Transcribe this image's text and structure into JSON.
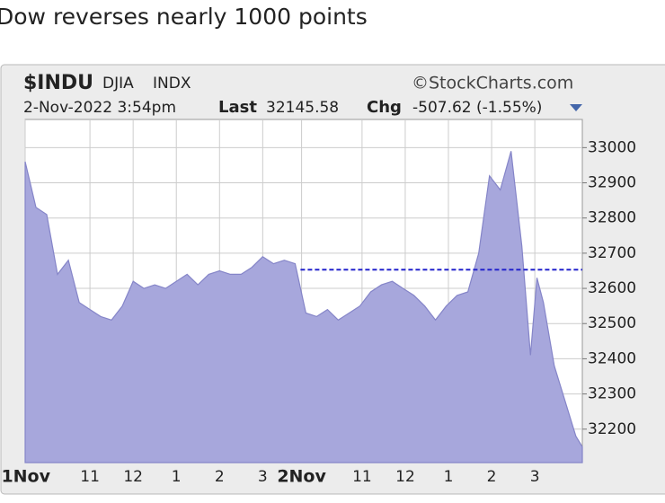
{
  "post_text": "Dow reverses nearly 1000 points",
  "chart_data": {
    "type": "area",
    "symbol": "$INDU",
    "name": "DJIA",
    "exchange": "INDX",
    "source": "©StockCharts.com",
    "date": "2-Nov-2022 3:54pm",
    "last_label": "Last",
    "last": "32145.58",
    "chg_label": "Chg",
    "chg": "-507.62 (-1.55%)",
    "x": [
      0,
      0.25,
      0.5,
      0.75,
      1,
      1.25,
      1.5,
      1.75,
      2,
      2.25,
      2.5,
      2.75,
      3,
      3.25,
      3.5,
      3.75,
      4,
      4.25,
      4.5,
      4.75,
      5,
      5.25,
      5.5,
      5.75,
      6,
      6.25,
      6.5,
      6.75,
      7,
      7.25,
      7.5,
      7.75,
      8,
      8.25,
      8.5,
      8.75,
      9,
      9.25,
      9.5,
      9.75,
      10,
      10.25,
      10.5,
      10.75,
      11,
      11.25,
      11.5,
      11.7,
      11.85,
      12,
      12.25,
      12.5,
      12.75,
      12.9
    ],
    "values": [
      32960,
      32830,
      32810,
      32640,
      32680,
      32560,
      32540,
      32520,
      32510,
      32550,
      32620,
      32600,
      32610,
      32600,
      32620,
      32640,
      32610,
      32640,
      32650,
      32640,
      32640,
      32660,
      32690,
      32670,
      32680,
      32670,
      32530,
      32520,
      32540,
      32510,
      32530,
      32550,
      32590,
      32610,
      32620,
      32600,
      32580,
      32550,
      32510,
      32550,
      32580,
      32590,
      32700,
      32920,
      32880,
      32990,
      32720,
      32410,
      32630,
      32560,
      32380,
      32280,
      32180,
      32150
    ],
    "color": "#a7a7dc",
    "line_color": "#8585c8",
    "reference_line": {
      "value": 32653,
      "color": "#2222cc"
    },
    "xlim": [
      0,
      12.9
    ],
    "ylim": [
      32105,
      33080
    ],
    "xticks": [
      {
        "value": 0,
        "label": "1Nov"
      },
      {
        "value": 1.5,
        "label": "11"
      },
      {
        "value": 2.5,
        "label": "12"
      },
      {
        "value": 3.5,
        "label": "1"
      },
      {
        "value": 4.5,
        "label": "2"
      },
      {
        "value": 5.5,
        "label": "3"
      },
      {
        "value": 6.4,
        "label": "2Nov"
      },
      {
        "value": 7.8,
        "label": "11"
      },
      {
        "value": 8.8,
        "label": "12"
      },
      {
        "value": 9.8,
        "label": "1"
      },
      {
        "value": 10.8,
        "label": "2"
      },
      {
        "value": 11.8,
        "label": "3"
      }
    ],
    "yticks": [
      32200,
      32300,
      32400,
      32500,
      32600,
      32700,
      32800,
      32900,
      33000
    ],
    "grid": true
  }
}
